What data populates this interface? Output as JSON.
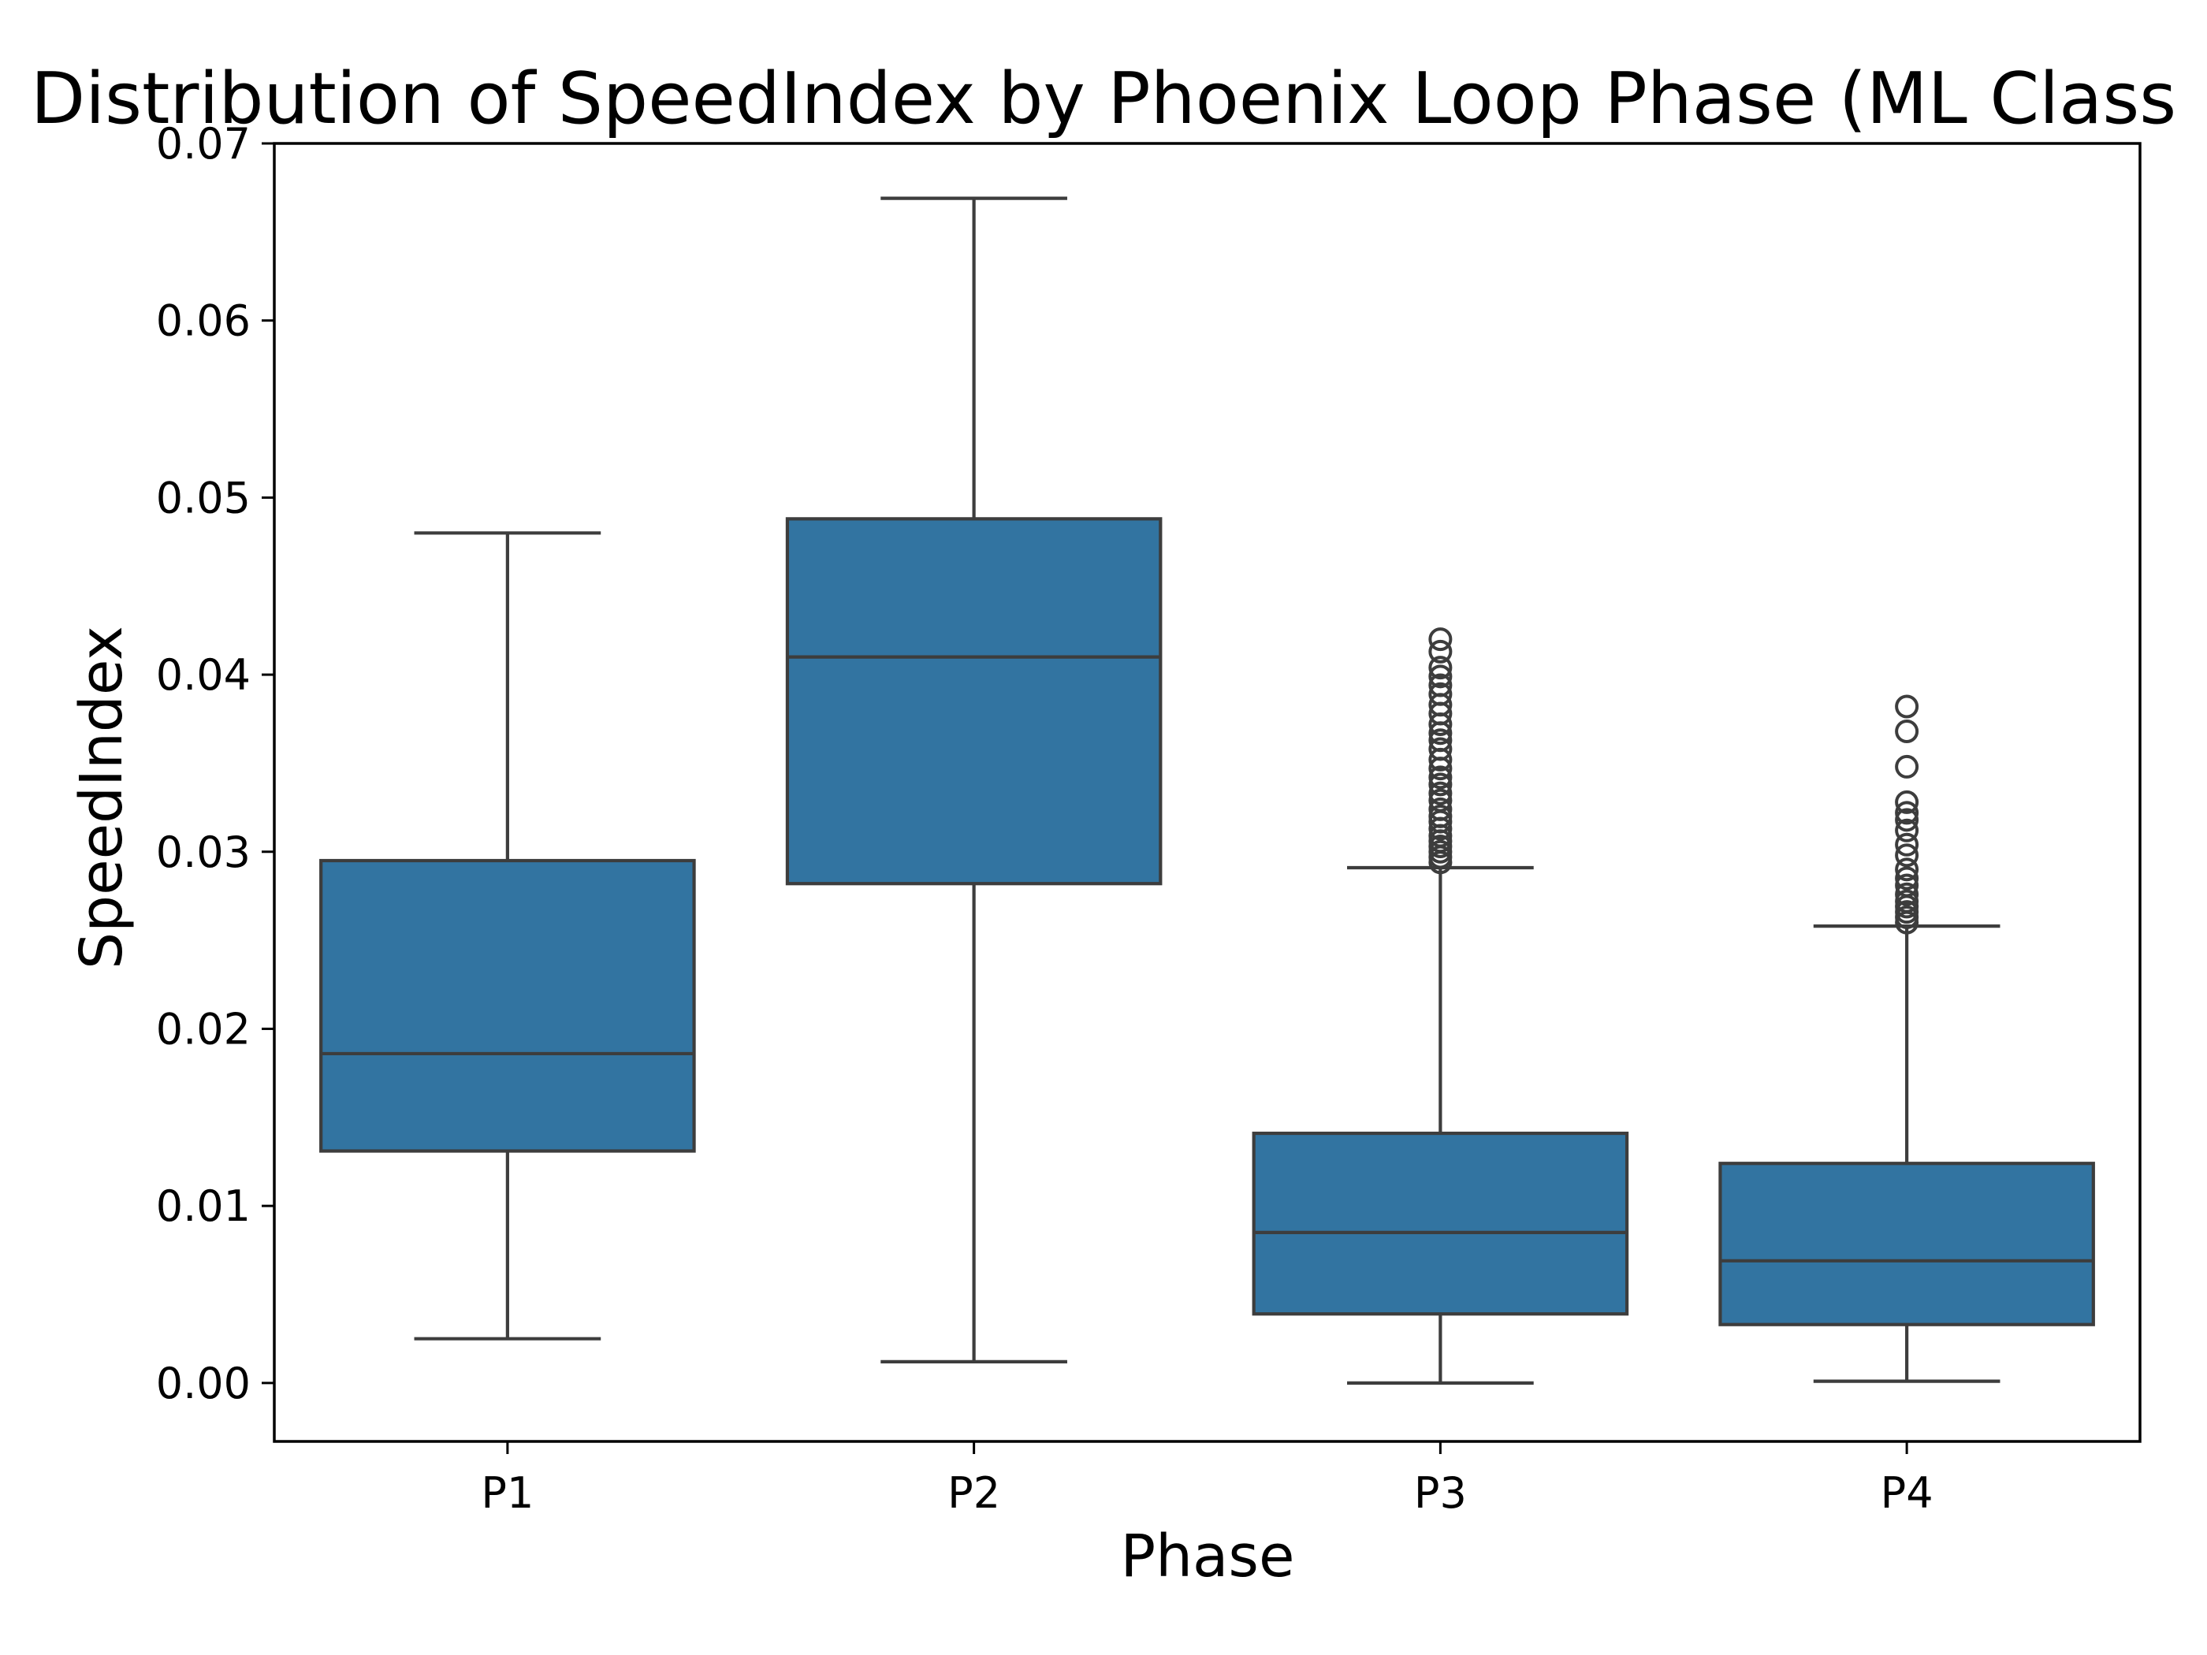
{
  "chart_data": {
    "type": "box",
    "title": "Distribution of SpeedIndex by Phoenix Loop Phase (ML Class",
    "xlabel": "Phase",
    "ylabel": "SpeedIndex",
    "ylim": [
      -0.0033,
      0.07
    ],
    "yticks": [
      "0.00",
      "0.01",
      "0.02",
      "0.03",
      "0.04",
      "0.05",
      "0.06",
      "0.07"
    ],
    "grid": false,
    "legend": "none",
    "box_color": "#3274a1",
    "line_color": "#3d3d3d",
    "categories": [
      "P1",
      "P2",
      "P3",
      "P4"
    ],
    "boxes": [
      {
        "category": "P1",
        "whisker_low": 0.0025,
        "q1": 0.0131,
        "median": 0.0186,
        "q3": 0.0295,
        "whisker_high": 0.048,
        "outliers": []
      },
      {
        "category": "P2",
        "whisker_low": 0.0012,
        "q1": 0.0282,
        "median": 0.041,
        "q3": 0.0488,
        "whisker_high": 0.0669,
        "outliers": []
      },
      {
        "category": "P3",
        "whisker_low": 0.0,
        "q1": 0.0039,
        "median": 0.0085,
        "q3": 0.0141,
        "whisker_high": 0.0291,
        "outliers": [
          0.0294,
          0.0297,
          0.03,
          0.0303,
          0.0306,
          0.0309,
          0.0313,
          0.0317,
          0.032,
          0.0324,
          0.0329,
          0.0333,
          0.0338,
          0.0342,
          0.0347,
          0.0352,
          0.0358,
          0.0363,
          0.0367,
          0.0372,
          0.0378,
          0.0383,
          0.0389,
          0.0394,
          0.0399,
          0.0404,
          0.0413,
          0.042
        ]
      },
      {
        "category": "P4",
        "whisker_low": 0.0001,
        "q1": 0.0033,
        "median": 0.0069,
        "q3": 0.0124,
        "whisker_high": 0.0258,
        "outliers": [
          0.026,
          0.0263,
          0.0266,
          0.0269,
          0.0272,
          0.0276,
          0.0281,
          0.0285,
          0.029,
          0.0298,
          0.0304,
          0.0312,
          0.0318,
          0.0322,
          0.0328,
          0.0348,
          0.0368,
          0.0382
        ]
      }
    ]
  }
}
